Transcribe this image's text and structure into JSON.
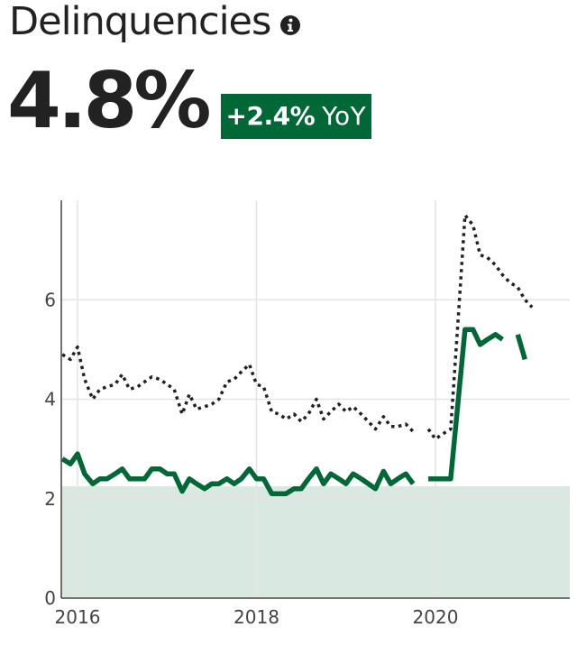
{
  "header": {
    "title": "Delinquencies",
    "info_icon": "info-icon"
  },
  "metric": {
    "value": "4.8%",
    "change": "+2.4%",
    "change_unit": "YoY",
    "badge_color": "#006837"
  },
  "chart_data": {
    "type": "line",
    "title": "",
    "xlabel": "",
    "ylabel": "",
    "xlim": [
      2016.0,
      2021.5
    ],
    "ylim": [
      0,
      8
    ],
    "x_ticks": [
      {
        "value": 2016,
        "label": "2016"
      },
      {
        "value": 2018,
        "label": "2018"
      },
      {
        "value": 2020,
        "label": "2020"
      }
    ],
    "y_ticks": [
      {
        "value": 0,
        "label": "0"
      },
      {
        "value": 2,
        "label": "2"
      },
      {
        "value": 4,
        "label": "4"
      },
      {
        "value": 6,
        "label": "6"
      }
    ],
    "grid": true,
    "band": {
      "from": 0,
      "to": 2.25,
      "color": "#d9e9e1"
    },
    "series": [
      {
        "style": "dotted",
        "color": "#222222",
        "segments": [
          [
            [
              2015.83,
              4.9
            ],
            [
              2015.92,
              4.8
            ],
            [
              2016.0,
              5.05
            ],
            [
              2016.08,
              4.4
            ],
            [
              2016.17,
              4.0
            ],
            [
              2016.25,
              4.2
            ],
            [
              2016.33,
              4.25
            ],
            [
              2016.42,
              4.3
            ],
            [
              2016.5,
              4.5
            ],
            [
              2016.58,
              4.2
            ],
            [
              2016.67,
              4.25
            ],
            [
              2016.75,
              4.35
            ],
            [
              2016.83,
              4.45
            ],
            [
              2016.92,
              4.4
            ],
            [
              2017.0,
              4.3
            ],
            [
              2017.08,
              4.2
            ],
            [
              2017.17,
              3.7
            ],
            [
              2017.25,
              4.1
            ],
            [
              2017.33,
              3.8
            ],
            [
              2017.42,
              3.85
            ],
            [
              2017.5,
              3.9
            ],
            [
              2017.58,
              4.0
            ],
            [
              2017.67,
              4.35
            ],
            [
              2017.75,
              4.4
            ],
            [
              2017.83,
              4.55
            ],
            [
              2017.92,
              4.7
            ],
            [
              2018.0,
              4.3
            ],
            [
              2018.08,
              4.25
            ],
            [
              2018.17,
              3.75
            ],
            [
              2018.25,
              3.7
            ],
            [
              2018.33,
              3.6
            ],
            [
              2018.42,
              3.7
            ],
            [
              2018.5,
              3.55
            ],
            [
              2018.58,
              3.7
            ],
            [
              2018.67,
              4.0
            ],
            [
              2018.75,
              3.6
            ],
            [
              2018.83,
              3.75
            ],
            [
              2018.92,
              3.9
            ],
            [
              2019.0,
              3.75
            ],
            [
              2019.08,
              3.85
            ],
            [
              2019.17,
              3.7
            ],
            [
              2019.25,
              3.55
            ],
            [
              2019.33,
              3.4
            ],
            [
              2019.42,
              3.65
            ],
            [
              2019.5,
              3.45
            ],
            [
              2019.58,
              3.45
            ],
            [
              2019.67,
              3.5
            ],
            [
              2019.75,
              3.35
            ]
          ],
          [
            [
              2019.92,
              3.4
            ],
            [
              2020.0,
              3.2
            ],
            [
              2020.08,
              3.3
            ],
            [
              2020.17,
              3.4
            ],
            [
              2020.25,
              5.5
            ],
            [
              2020.33,
              7.7
            ],
            [
              2020.42,
              7.5
            ],
            [
              2020.5,
              6.9
            ],
            [
              2020.58,
              6.85
            ],
            [
              2020.67,
              6.7
            ],
            [
              2020.75,
              6.5
            ],
            [
              2020.83,
              6.35
            ],
            [
              2020.92,
              6.25
            ],
            [
              2021.0,
              6.0
            ],
            [
              2021.08,
              5.85
            ]
          ]
        ]
      },
      {
        "style": "solid",
        "color": "#006837",
        "segments": [
          [
            [
              2015.83,
              2.8
            ],
            [
              2015.92,
              2.7
            ],
            [
              2016.0,
              2.9
            ],
            [
              2016.08,
              2.5
            ],
            [
              2016.17,
              2.3
            ],
            [
              2016.25,
              2.4
            ],
            [
              2016.33,
              2.4
            ],
            [
              2016.42,
              2.5
            ],
            [
              2016.5,
              2.6
            ],
            [
              2016.58,
              2.4
            ],
            [
              2016.67,
              2.4
            ],
            [
              2016.75,
              2.4
            ],
            [
              2016.83,
              2.6
            ],
            [
              2016.92,
              2.6
            ],
            [
              2017.0,
              2.5
            ],
            [
              2017.08,
              2.5
            ],
            [
              2017.17,
              2.15
            ],
            [
              2017.25,
              2.4
            ],
            [
              2017.33,
              2.3
            ],
            [
              2017.42,
              2.2
            ],
            [
              2017.5,
              2.3
            ],
            [
              2017.58,
              2.3
            ],
            [
              2017.67,
              2.4
            ],
            [
              2017.75,
              2.3
            ],
            [
              2017.83,
              2.4
            ],
            [
              2017.92,
              2.6
            ],
            [
              2018.0,
              2.4
            ],
            [
              2018.08,
              2.4
            ],
            [
              2018.17,
              2.1
            ],
            [
              2018.25,
              2.1
            ],
            [
              2018.33,
              2.1
            ],
            [
              2018.42,
              2.2
            ],
            [
              2018.5,
              2.2
            ],
            [
              2018.58,
              2.4
            ],
            [
              2018.67,
              2.6
            ],
            [
              2018.75,
              2.3
            ],
            [
              2018.83,
              2.5
            ],
            [
              2018.92,
              2.4
            ],
            [
              2019.0,
              2.3
            ],
            [
              2019.08,
              2.5
            ],
            [
              2019.17,
              2.4
            ],
            [
              2019.25,
              2.3
            ],
            [
              2019.33,
              2.2
            ],
            [
              2019.42,
              2.55
            ],
            [
              2019.5,
              2.3
            ],
            [
              2019.58,
              2.4
            ],
            [
              2019.67,
              2.5
            ],
            [
              2019.75,
              2.3
            ]
          ],
          [
            [
              2019.92,
              2.4
            ],
            [
              2020.0,
              2.4
            ],
            [
              2020.08,
              2.4
            ],
            [
              2020.17,
              2.4
            ],
            [
              2020.33,
              5.4
            ],
            [
              2020.42,
              5.4
            ],
            [
              2020.5,
              5.1
            ],
            [
              2020.58,
              5.2
            ],
            [
              2020.67,
              5.3
            ],
            [
              2020.75,
              5.2
            ]
          ],
          [
            [
              2020.92,
              5.3
            ],
            [
              2021.0,
              4.8
            ]
          ]
        ]
      }
    ]
  }
}
